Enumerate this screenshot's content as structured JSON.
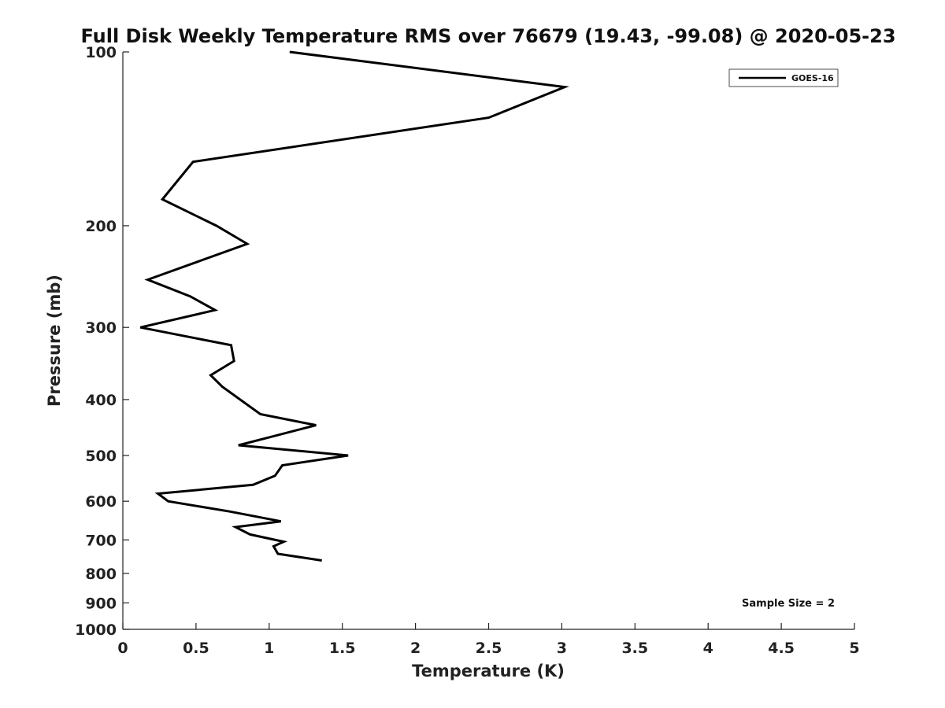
{
  "chart_data": {
    "type": "line",
    "title": "Full Disk Weekly Temperature RMS over 76679 (19.43, -99.08) @ 2020-05-23",
    "xlabel": "Temperature (K)",
    "ylabel": "Pressure (mb)",
    "xlim": [
      0,
      5
    ],
    "ylim": [
      100,
      1000
    ],
    "y_scale": "log",
    "y_reversed": true,
    "x_ticks": [
      0,
      0.5,
      1,
      1.5,
      2,
      2.5,
      3,
      3.5,
      4,
      4.5,
      5
    ],
    "x_tick_labels": [
      "0",
      "0.5",
      "1",
      "1.5",
      "2",
      "2.5",
      "3",
      "3.5",
      "4",
      "4.5",
      "5"
    ],
    "y_ticks": [
      100,
      200,
      300,
      400,
      500,
      600,
      700,
      800,
      900,
      1000
    ],
    "y_tick_labels": [
      "100",
      "200",
      "300",
      "400",
      "500",
      "600",
      "700",
      "800",
      "900",
      "1000"
    ],
    "grid": false,
    "legend_position": "top-right",
    "series": [
      {
        "name": "GOES-16",
        "color": "#000000",
        "x": [
          1.14,
          3.02,
          2.5,
          0.48,
          0.27,
          0.64,
          0.85,
          0.17,
          0.46,
          0.63,
          0.12,
          0.74,
          0.76,
          0.6,
          0.68,
          0.94,
          1.32,
          1.0,
          0.79,
          1.54,
          1.09,
          1.04,
          0.89,
          0.24,
          0.31,
          0.73,
          1.08,
          0.77,
          0.87,
          1.1,
          1.03,
          1.06,
          1.36
        ],
        "y": [
          100,
          115,
          130,
          155,
          180,
          200,
          215,
          248,
          265,
          280,
          300,
          322,
          343,
          363,
          380,
          424,
          443,
          465,
          480,
          500,
          520,
          542,
          562,
          582,
          600,
          625,
          650,
          665,
          685,
          705,
          718,
          740,
          760
        ]
      }
    ],
    "annotations": [
      {
        "text": "Sample Size = 2",
        "position": "bottom-right"
      }
    ]
  }
}
